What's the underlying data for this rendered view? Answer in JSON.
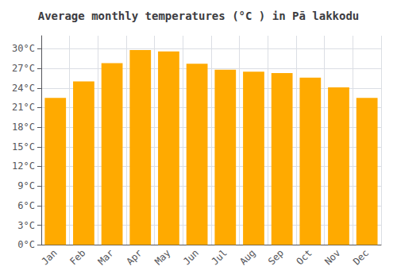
{
  "chart_data": {
    "type": "bar",
    "title": "Average monthly temperatures (°C ) in Pā lakkodu",
    "categories": [
      "Jan",
      "Feb",
      "Mar",
      "Apr",
      "May",
      "Jun",
      "Jul",
      "Aug",
      "Sep",
      "Oct",
      "Nov",
      "Dec"
    ],
    "values": [
      22.5,
      25.0,
      27.8,
      29.8,
      29.6,
      27.7,
      26.8,
      26.5,
      26.3,
      25.6,
      24.1,
      22.5
    ],
    "color": "#FFAA00",
    "ylim": [
      0,
      32
    ],
    "yticks": [
      {
        "value": 0,
        "label": "0°C"
      },
      {
        "value": 3,
        "label": "3°C"
      },
      {
        "value": 6,
        "label": "6°C"
      },
      {
        "value": 9,
        "label": "9°C"
      },
      {
        "value": 12,
        "label": "12°C"
      },
      {
        "value": 15,
        "label": "15°C"
      },
      {
        "value": 18,
        "label": "18°C"
      },
      {
        "value": 21,
        "label": "21°C"
      },
      {
        "value": 24,
        "label": "24°C"
      },
      {
        "value": 27,
        "label": "27°C"
      },
      {
        "value": 30,
        "label": "30°C"
      }
    ],
    "grid": true
  }
}
